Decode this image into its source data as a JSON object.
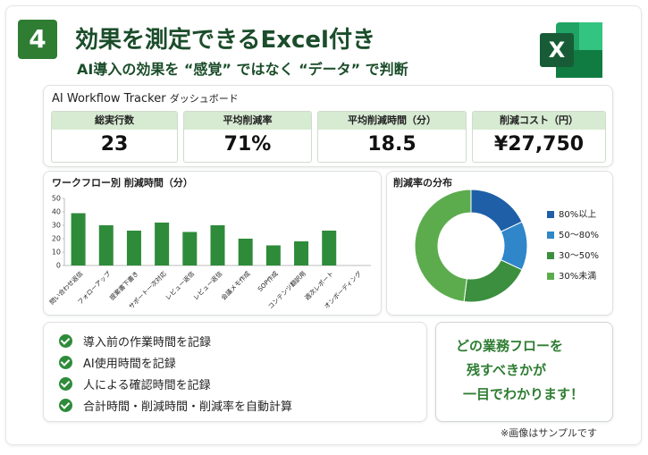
{
  "header": {
    "number": "4",
    "title": "効果を測定できるExcel付き",
    "subtitle": "AI導入の効果を “感覚” ではなく “データ” で判断"
  },
  "dashboard": {
    "title": "AI Workflow Tracker",
    "subtitle": "ダッシュボード",
    "kpis": [
      {
        "label": "総実行数",
        "value": "23"
      },
      {
        "label": "平均削減率",
        "value": "71%"
      },
      {
        "label": "平均削減時間（分）",
        "value": "18.5"
      },
      {
        "label": "削減コスト（円）",
        "value": "¥27,750"
      }
    ]
  },
  "chart_data": [
    {
      "type": "bar",
      "title": "ワークフロー別 削減時間（分）",
      "categories": [
        "問い合わせ返信",
        "フォローアップ",
        "提案書下書き",
        "サポート一次対応",
        "レビュー返信",
        "レビュー返信",
        "会議メモ作成",
        "SOP作成",
        "コンテンツ翻訳用",
        "週次レポート",
        "オンボーディング"
      ],
      "values": [
        39,
        30,
        26,
        32,
        25,
        30,
        20,
        15,
        18,
        26,
        null
      ],
      "color": "#2e8b3a",
      "ylim": [
        0,
        50
      ],
      "yticks": [
        0,
        10,
        20,
        30,
        40,
        50
      ],
      "grid": false
    },
    {
      "type": "donut",
      "title": "削減率の分布",
      "categories": [
        "80%以上",
        "50〜80%",
        "30〜50%",
        "30%未満"
      ],
      "values": [
        18,
        14,
        20,
        48
      ],
      "colors": [
        "#1f5fa8",
        "#2f86c8",
        "#3b8f3e",
        "#5cac4e"
      ],
      "legend": "right"
    }
  ],
  "checklist": [
    "導入前の作業時間を記録",
    "AI使用時間を記録",
    "人による確認時間を記録",
    "合計時間・削減時間・削減率を自動計算"
  ],
  "message": [
    "どの業務フローを",
    "残すべきかが",
    "一目でわかります！"
  ],
  "footnote": "※画像はサンプルです"
}
